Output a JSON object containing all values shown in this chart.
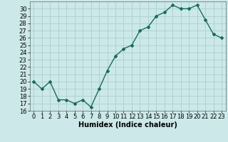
{
  "x": [
    0,
    1,
    2,
    3,
    4,
    5,
    6,
    7,
    8,
    9,
    10,
    11,
    12,
    13,
    14,
    15,
    16,
    17,
    18,
    19,
    20,
    21,
    22,
    23
  ],
  "y": [
    20,
    19,
    20,
    17.5,
    17.5,
    17,
    17.5,
    16.5,
    19,
    21.5,
    23.5,
    24.5,
    25,
    27,
    27.5,
    29,
    29.5,
    30.5,
    30,
    30,
    30.5,
    28.5,
    26.5,
    26
  ],
  "line_color": "#1a6b5a",
  "marker": "D",
  "marker_size": 2.0,
  "background_color": "#cce8e8",
  "grid_color": "#aacfcf",
  "xlabel": "Humidex (Indice chaleur)",
  "ylim": [
    16,
    31
  ],
  "xlim": [
    -0.5,
    23.5
  ],
  "yticks": [
    16,
    17,
    18,
    19,
    20,
    21,
    22,
    23,
    24,
    25,
    26,
    27,
    28,
    29,
    30
  ],
  "xticks": [
    0,
    1,
    2,
    3,
    4,
    5,
    6,
    7,
    8,
    9,
    10,
    11,
    12,
    13,
    14,
    15,
    16,
    17,
    18,
    19,
    20,
    21,
    22,
    23
  ],
  "xlabel_fontsize": 7,
  "tick_fontsize": 6,
  "linewidth": 1.0
}
